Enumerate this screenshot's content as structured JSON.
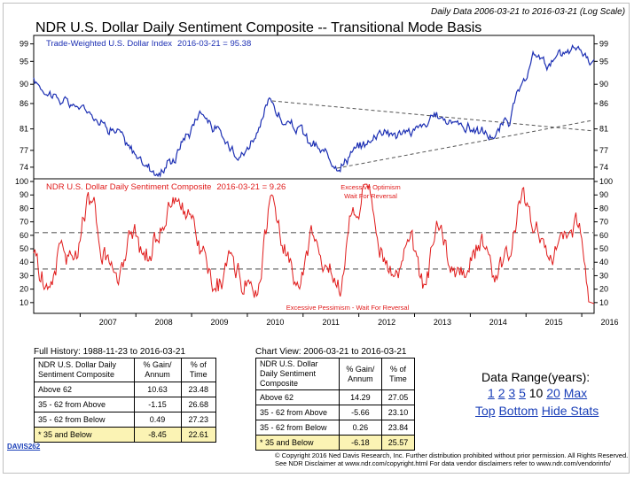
{
  "header": {
    "daily_note": "Daily Data 2006-03-21 to 2016-03-21 (Log Scale)",
    "title": "NDR U.S. Dollar Daily Sentiment Composite -- Transitional Mode Basis"
  },
  "chart_data": [
    {
      "type": "line",
      "panel": "top",
      "label": "Trade-Weighted U.S. Dollar Index",
      "label_date": "2016-03-21 = 95.38",
      "yscale": "log",
      "y_ticks": [
        74,
        77,
        81,
        86,
        90,
        95,
        99
      ],
      "ylim": [
        72,
        101
      ],
      "x": [
        "2006-03",
        "2006-06",
        "2006-09",
        "2006-12",
        "2007-03",
        "2007-06",
        "2007-09",
        "2007-12",
        "2008-03",
        "2008-06",
        "2008-09",
        "2008-12",
        "2009-03",
        "2009-06",
        "2009-09",
        "2009-12",
        "2010-03",
        "2010-06",
        "2010-09",
        "2010-12",
        "2011-03",
        "2011-06",
        "2011-09",
        "2011-12",
        "2012-03",
        "2012-06",
        "2012-09",
        "2012-12",
        "2013-03",
        "2013-06",
        "2013-09",
        "2013-12",
        "2014-03",
        "2014-06",
        "2014-09",
        "2014-12",
        "2015-03",
        "2015-06",
        "2015-09",
        "2015-12",
        "2016-03"
      ],
      "values": [
        90.5,
        88.5,
        86.5,
        85.5,
        84.5,
        82,
        80.5,
        77,
        74.5,
        73,
        75.5,
        80,
        84.5,
        81,
        78,
        76.5,
        80,
        86.5,
        82,
        81,
        78,
        76,
        74.5,
        77,
        78.5,
        81,
        80,
        80.5,
        81.5,
        83.5,
        82.5,
        81.5,
        80.5,
        79.5,
        82.5,
        89,
        96.5,
        94.5,
        96.5,
        98,
        95.38
      ],
      "series_color": "#1c2fb3"
    },
    {
      "type": "line",
      "panel": "bottom",
      "label": "NDR U.S. Dollar Daily Sentiment Composite",
      "label_date": "2016-03-21 = 9.26",
      "y_ticks": [
        10,
        20,
        30,
        40,
        50,
        60,
        70,
        80,
        90,
        100
      ],
      "ylim": [
        2,
        102
      ],
      "reference_lines": [
        62,
        35
      ],
      "annotation_top_1": "Excessive Optimism",
      "annotation_top_2": "Wait For Reversal",
      "annotation_bottom": "Excessive Pessimism - Wait For Reversal",
      "x": [
        "2006-03",
        "2006-06",
        "2006-09",
        "2006-12",
        "2007-03",
        "2007-06",
        "2007-09",
        "2007-12",
        "2008-03",
        "2008-06",
        "2008-09",
        "2008-12",
        "2009-03",
        "2009-06",
        "2009-09",
        "2009-12",
        "2010-03",
        "2010-06",
        "2010-09",
        "2010-12",
        "2011-03",
        "2011-06",
        "2011-09",
        "2011-12",
        "2012-03",
        "2012-06",
        "2012-09",
        "2012-12",
        "2013-03",
        "2013-06",
        "2013-09",
        "2013-12",
        "2014-03",
        "2014-06",
        "2014-09",
        "2014-12",
        "2015-03",
        "2015-06",
        "2015-09",
        "2015-12",
        "2016-03"
      ],
      "values": [
        45,
        20,
        55,
        40,
        85,
        45,
        30,
        60,
        40,
        65,
        85,
        75,
        50,
        20,
        40,
        25,
        20,
        85,
        45,
        20,
        60,
        35,
        25,
        80,
        90,
        45,
        30,
        60,
        20,
        70,
        40,
        30,
        55,
        30,
        45,
        85,
        65,
        45,
        60,
        70,
        9.26
      ],
      "series_color": "#e01b1b",
      "x_ticks": [
        "2007",
        "2008",
        "2009",
        "2010",
        "2011",
        "2012",
        "2013",
        "2014",
        "2015",
        "2016"
      ]
    }
  ],
  "full_history": {
    "label": "Full History:",
    "dates": "1988-11-23 to 2016-03-21",
    "col1": "NDR U.S. Dollar Daily Sentiment Composite",
    "col2": "% Gain/ Annum",
    "col3": "% of Time",
    "rows": [
      {
        "name": "Above 62",
        "gain": "10.63",
        "time": "23.48"
      },
      {
        "name": "35 - 62 from Above",
        "gain": "-1.15",
        "time": "26.68"
      },
      {
        "name": "35 - 62 from Below",
        "gain": "0.49",
        "time": "27.23"
      },
      {
        "name": "* 35 and Below",
        "gain": "-8.45",
        "time": "22.61"
      }
    ]
  },
  "chart_view": {
    "label": "Chart View:",
    "dates": "2006-03-21 to 2016-03-21",
    "col1": "NDR U.S. Dollar Daily Sentiment Composite",
    "col2": "% Gain/ Annum",
    "col3": "% of Time",
    "rows": [
      {
        "name": "Above 62",
        "gain": "14.29",
        "time": "27.05"
      },
      {
        "name": "35 - 62 from Above",
        "gain": "-5.66",
        "time": "23.10"
      },
      {
        "name": "35 - 62 from Below",
        "gain": "0.26",
        "time": "23.84"
      },
      {
        "name": "* 35 and Below",
        "gain": "-6.18",
        "time": "25.57"
      }
    ]
  },
  "data_range": {
    "title": "Data Range(years):",
    "options": [
      "1",
      "2",
      "3",
      "5",
      "10",
      "20",
      "Max"
    ],
    "selected": "10"
  },
  "nav": {
    "top": "Top",
    "bottom": "Bottom",
    "hide_stats": "Hide Stats"
  },
  "footer": {
    "code": "DAVIS262",
    "copyright_line1": "© Copyright 2016 Ned Davis Research, Inc. Further distribution prohibited without prior permission. All Rights Reserved.",
    "copyright_line2": "See NDR Disclaimer at www.ndr.com/copyright.html   For data vendor disclaimers refer to www.ndr.com/vendorinfo/"
  }
}
